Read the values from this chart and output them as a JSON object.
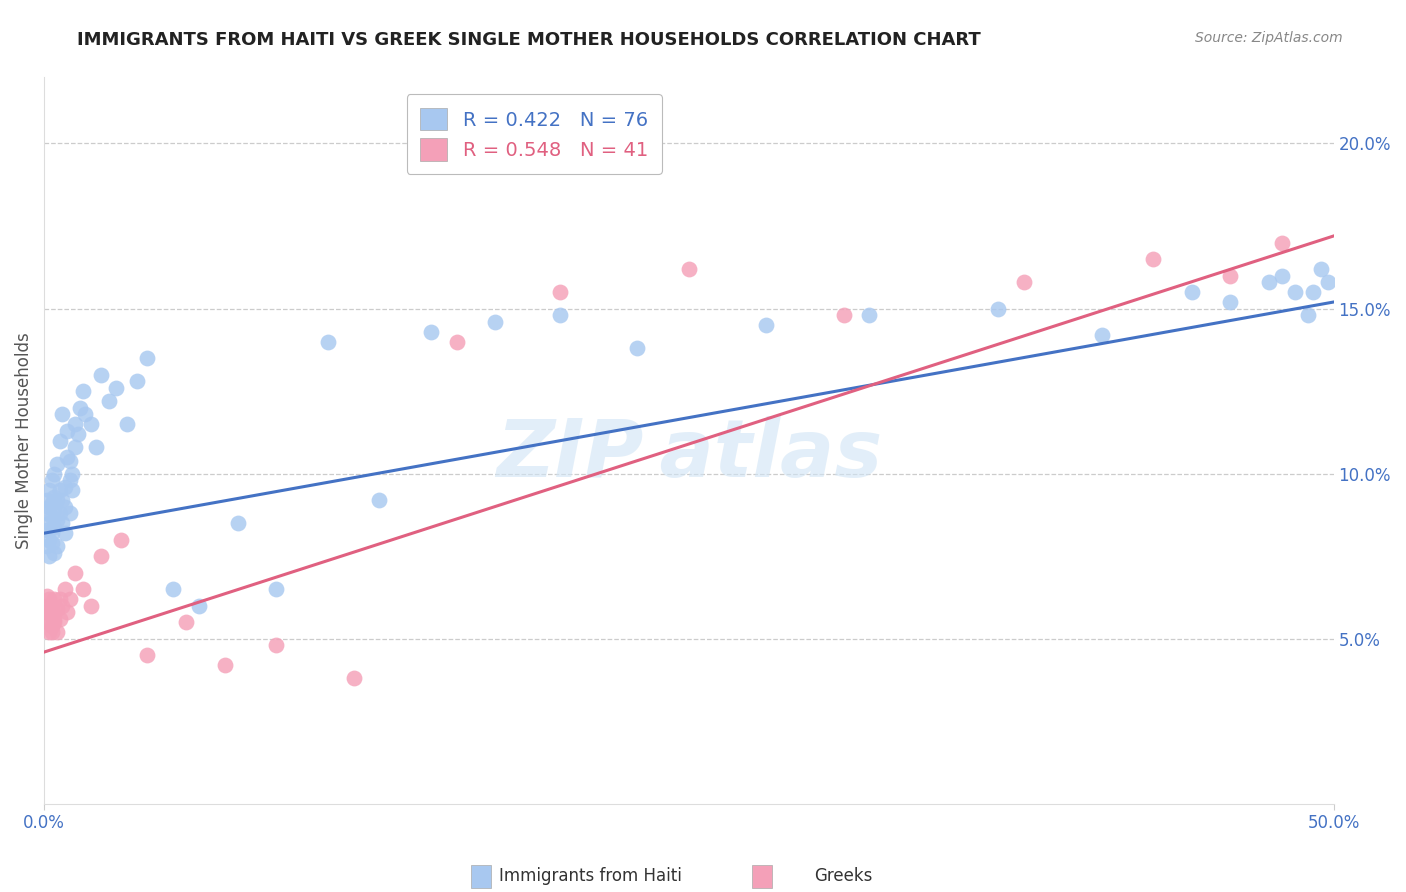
{
  "title": "IMMIGRANTS FROM HAITI VS GREEK SINGLE MOTHER HOUSEHOLDS CORRELATION CHART",
  "source": "Source: ZipAtlas.com",
  "ylabel": "Single Mother Households",
  "xlim": [
    0.0,
    0.5
  ],
  "ylim": [
    0.0,
    0.22
  ],
  "ytick_positions": [
    0.05,
    0.1,
    0.15,
    0.2
  ],
  "ytick_labels": [
    "5.0%",
    "10.0%",
    "15.0%",
    "20.0%"
  ],
  "legend1_R": "0.422",
  "legend1_N": "76",
  "legend2_R": "0.548",
  "legend2_N": "41",
  "legend1_label": "Immigrants from Haiti",
  "legend2_label": "Greeks",
  "blue_color": "#A8C8F0",
  "pink_color": "#F4A0B8",
  "blue_line_color": "#4472C4",
  "pink_line_color": "#E06080",
  "axis_tick_color": "#4472C4",
  "background_color": "#FFFFFF",
  "grid_color": "#CCCCCC",
  "title_color": "#222222",
  "source_color": "#888888",
  "ylabel_color": "#555555",
  "watermark_color": "#D0E4F5",
  "blue_x": [
    0.001,
    0.001,
    0.001,
    0.001,
    0.002,
    0.002,
    0.002,
    0.002,
    0.002,
    0.003,
    0.003,
    0.003,
    0.003,
    0.003,
    0.004,
    0.004,
    0.004,
    0.004,
    0.004,
    0.005,
    0.005,
    0.005,
    0.005,
    0.006,
    0.006,
    0.006,
    0.007,
    0.007,
    0.007,
    0.008,
    0.008,
    0.008,
    0.009,
    0.009,
    0.01,
    0.01,
    0.01,
    0.011,
    0.011,
    0.012,
    0.012,
    0.013,
    0.014,
    0.015,
    0.016,
    0.018,
    0.02,
    0.022,
    0.025,
    0.028,
    0.032,
    0.036,
    0.04,
    0.05,
    0.06,
    0.075,
    0.09,
    0.11,
    0.13,
    0.15,
    0.175,
    0.2,
    0.23,
    0.28,
    0.32,
    0.37,
    0.41,
    0.445,
    0.46,
    0.475,
    0.48,
    0.485,
    0.49,
    0.492,
    0.495,
    0.498
  ],
  "blue_y": [
    0.083,
    0.078,
    0.088,
    0.092,
    0.08,
    0.075,
    0.085,
    0.09,
    0.095,
    0.082,
    0.087,
    0.079,
    0.091,
    0.098,
    0.084,
    0.089,
    0.093,
    0.076,
    0.1,
    0.086,
    0.092,
    0.078,
    0.103,
    0.088,
    0.095,
    0.11,
    0.085,
    0.092,
    0.118,
    0.09,
    0.096,
    0.082,
    0.105,
    0.113,
    0.098,
    0.104,
    0.088,
    0.1,
    0.095,
    0.108,
    0.115,
    0.112,
    0.12,
    0.125,
    0.118,
    0.115,
    0.108,
    0.13,
    0.122,
    0.126,
    0.115,
    0.128,
    0.135,
    0.065,
    0.06,
    0.085,
    0.065,
    0.14,
    0.092,
    0.143,
    0.146,
    0.148,
    0.138,
    0.145,
    0.148,
    0.15,
    0.142,
    0.155,
    0.152,
    0.158,
    0.16,
    0.155,
    0.148,
    0.155,
    0.162,
    0.158
  ],
  "pink_x": [
    0.001,
    0.001,
    0.001,
    0.001,
    0.002,
    0.002,
    0.002,
    0.002,
    0.003,
    0.003,
    0.003,
    0.003,
    0.004,
    0.004,
    0.004,
    0.005,
    0.005,
    0.006,
    0.006,
    0.007,
    0.008,
    0.009,
    0.01,
    0.012,
    0.015,
    0.018,
    0.022,
    0.03,
    0.04,
    0.055,
    0.07,
    0.09,
    0.12,
    0.16,
    0.2,
    0.25,
    0.31,
    0.38,
    0.43,
    0.46,
    0.48
  ],
  "pink_y": [
    0.06,
    0.055,
    0.063,
    0.058,
    0.055,
    0.052,
    0.058,
    0.062,
    0.054,
    0.058,
    0.052,
    0.06,
    0.056,
    0.062,
    0.055,
    0.059,
    0.052,
    0.056,
    0.062,
    0.06,
    0.065,
    0.058,
    0.062,
    0.07,
    0.065,
    0.06,
    0.075,
    0.08,
    0.045,
    0.055,
    0.042,
    0.048,
    0.038,
    0.14,
    0.155,
    0.162,
    0.148,
    0.158,
    0.165,
    0.16,
    0.17
  ],
  "blue_trend": [
    0.082,
    0.152
  ],
  "pink_trend": [
    0.046,
    0.172
  ]
}
